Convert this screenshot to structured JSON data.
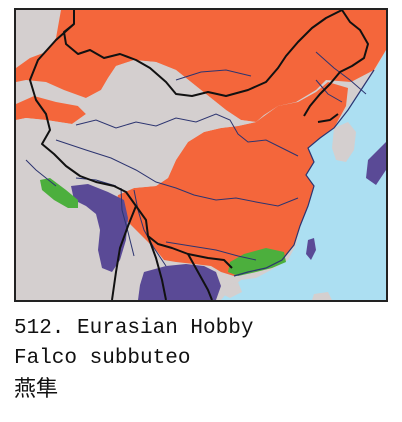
{
  "caption": {
    "number_name": "512. Eurasian Hobby",
    "scientific_name": "Falco subbuteo",
    "chinese_name": "燕隼"
  },
  "colors": {
    "sea": "#acdff2",
    "land": "#d4cfcf",
    "breeding": "#f4663b",
    "resident": "#5a4a96",
    "migration": "#4caf3d",
    "border": "#111111",
    "river": "#2c3470"
  }
}
